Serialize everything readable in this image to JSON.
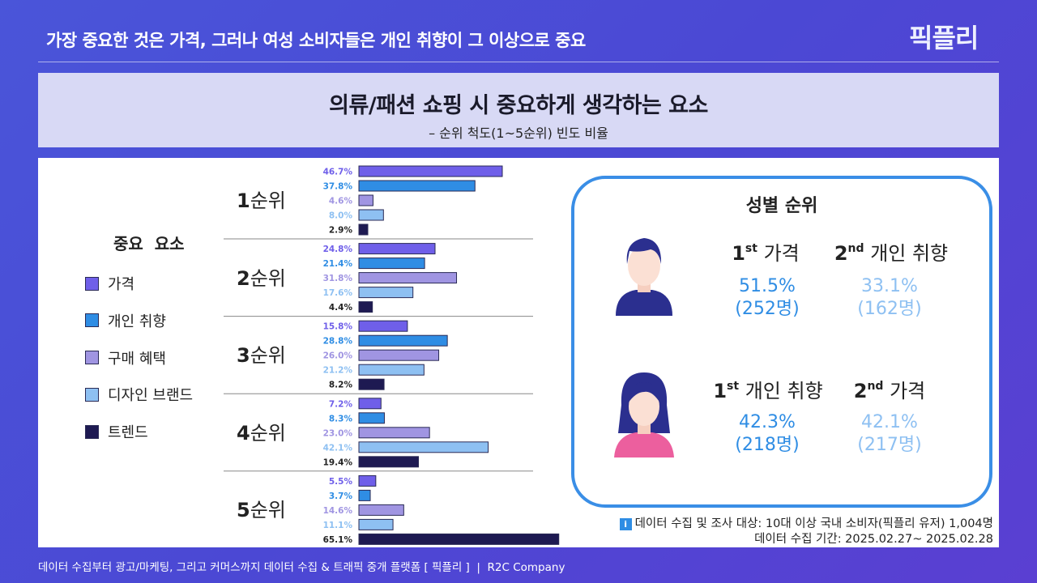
{
  "header": {
    "headline": "가장 중요한 것은 가격, 그러나 여성 소비자들은 개인 취향이 그 이상으로 중요",
    "logo": "픽플리"
  },
  "chart_data": {
    "type": "bar",
    "title": "의류/패션 쇼핑 시 중요하게 생각하는 요소",
    "subtitle": "– 순위 척도(1~5순위) 빈도 비율",
    "legend_title": "중요  요소",
    "legend_position": "left",
    "categories": [
      "1순위",
      "2순위",
      "3순위",
      "4순위",
      "5순위"
    ],
    "category_parts": [
      [
        "1",
        "순위"
      ],
      [
        "2",
        "순위"
      ],
      [
        "3",
        "순위"
      ],
      [
        "4",
        "순위"
      ],
      [
        "5",
        "순위"
      ]
    ],
    "series": [
      {
        "name": "가격",
        "color": "#6f5fe9",
        "label_color": "#6f5fe9",
        "values": [
          46.7,
          24.8,
          15.8,
          7.2,
          5.5
        ]
      },
      {
        "name": "개인 취향",
        "color": "#2f8de4",
        "label_color": "#2f8de4",
        "values": [
          37.8,
          21.4,
          28.8,
          8.3,
          3.7
        ]
      },
      {
        "name": "구매 혜택",
        "color": "#a095e2",
        "label_color": "#a095e2",
        "values": [
          4.6,
          31.8,
          26.0,
          23.0,
          14.6
        ]
      },
      {
        "name": "디자인 브랜드",
        "color": "#8ec0f2",
        "label_color": "#8ec0f2",
        "values": [
          8.0,
          17.6,
          21.2,
          42.1,
          11.1
        ]
      },
      {
        "name": "트렌드",
        "color": "#1e1a52",
        "label_color": "#222222",
        "values": [
          2.9,
          4.4,
          8.2,
          19.4,
          65.1
        ]
      }
    ],
    "unit": "%"
  },
  "gender": {
    "title": "성별 순위",
    "male": {
      "first": {
        "num": "1",
        "sup": "st",
        "label": "가격",
        "pct": "51.5%",
        "count": "(252명)"
      },
      "second": {
        "num": "2",
        "sup": "nd",
        "label": "개인 취향",
        "pct": "33.1%",
        "count": "(162명)"
      }
    },
    "female": {
      "first": {
        "num": "1",
        "sup": "st",
        "label": "개인 취향",
        "pct": "42.3%",
        "count": "(218명)"
      },
      "second": {
        "num": "2",
        "sup": "nd",
        "label": "가격",
        "pct": "42.1%",
        "count": "(217명)"
      }
    },
    "first_color": "#2f8de4",
    "second_color": "#8ec0f2"
  },
  "note": {
    "icon": "info-icon",
    "line1": "데이터 수집 및 조사 대상: 10대 이상 국내 소비자(픽플리 유저) 1,004명",
    "line2": "데이터 수집 기간: 2025.02.27~ 2025.02.28"
  },
  "footer": "데이터 수집부터 광고/마케팅, 그리고 커머스까지 데이터 수집 & 트래픽 중개 플랫폼 [ 픽플리 ]  |  R2C Company"
}
